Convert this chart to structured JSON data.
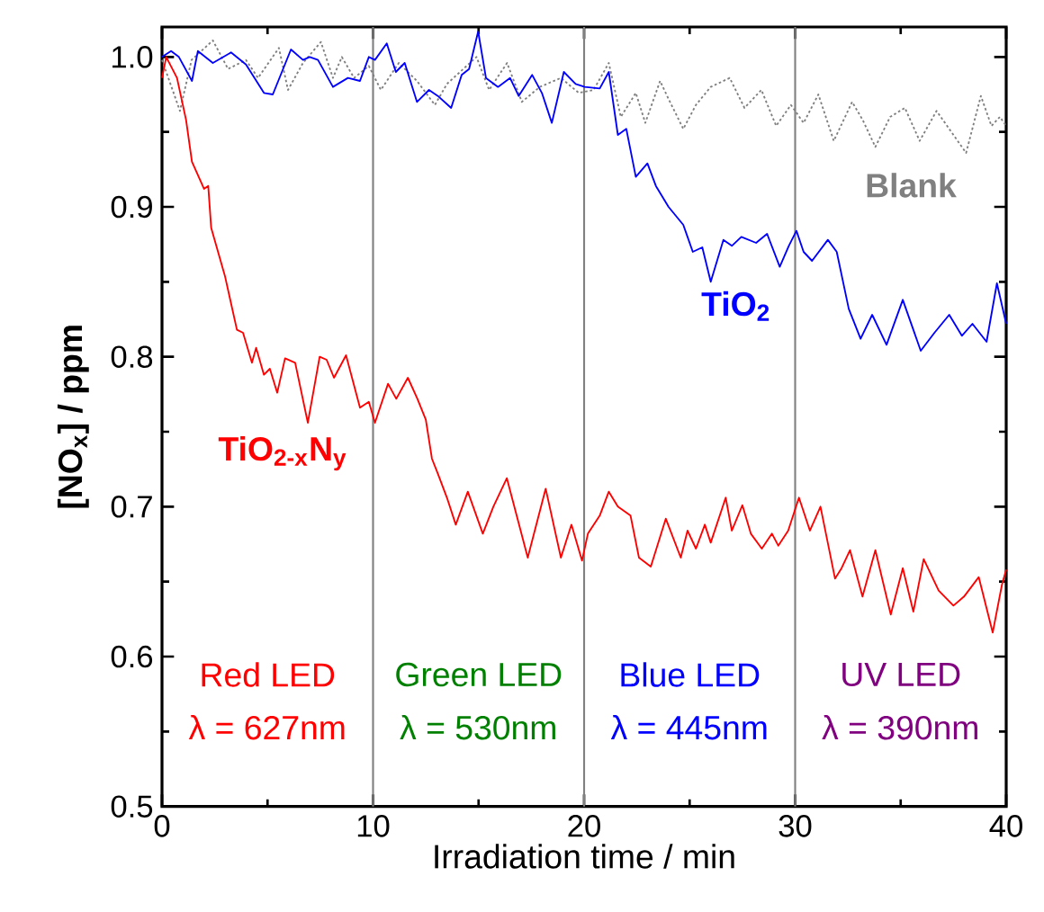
{
  "chart_data": {
    "type": "line",
    "xlabel": "Irradiation time / min",
    "ylabel": "**[NO$_{x}$] / ppm**",
    "xlim": [
      0,
      40
    ],
    "ylim": [
      0.5,
      1.02
    ],
    "xticks": [
      0,
      10,
      20,
      30,
      40
    ],
    "yticks": [
      0.5,
      0.6,
      0.7,
      0.8,
      0.9,
      {
        "value": 1,
        "label": "1.0"
      }
    ],
    "ref_lines": [
      {
        "axis": "x",
        "value": 10,
        "color": "#808080"
      },
      {
        "axis": "x",
        "value": 20,
        "color": "#808080"
      },
      {
        "axis": "x",
        "value": 30,
        "color": "#808080"
      }
    ],
    "annotations": [
      "Red LED",
      "λ = 627nm",
      "Green LED",
      "λ = 530nm",
      "Blue LED",
      "λ = 445nm",
      "UV LED",
      "λ = 390nm"
    ],
    "series": [
      {
        "name": "Blank",
        "color": "#808080",
        "line_style": "dotted",
        "x": [
          0,
          0.85,
          1.4,
          2.41,
          3.13,
          3.98,
          4.55,
          5.54,
          5.97,
          6.68,
          7.53,
          8.1,
          8.52,
          9.1,
          9.8,
          10.37,
          11.22,
          12.08,
          12.93,
          13.5,
          14.9,
          15.5,
          16.35,
          17.05,
          17.9,
          18.9,
          19.75,
          20.45,
          21.17,
          21.74,
          22.45,
          22.9,
          23.6,
          24.0,
          24.7,
          25.3,
          26.0,
          26.9,
          27.6,
          28.4,
          29.1,
          29.8,
          30.4,
          31.1,
          31.83,
          32.7,
          33.2,
          33.8,
          34.5,
          35.2,
          35.9,
          36.7,
          37.4,
          38.1,
          38.8,
          39.3,
          39.7,
          40
        ],
        "values": [
          0.998,
          0.964,
          0.998,
          1.011,
          0.992,
          0.998,
          0.986,
          1.006,
          0.978,
          0.996,
          1.01,
          0.986,
          1.0,
          0.986,
          0.994,
          0.978,
          0.996,
          0.984,
          0.968,
          0.982,
          1.0,
          0.978,
          0.996,
          0.97,
          0.98,
          0.986,
          0.976,
          0.978,
          0.996,
          0.96,
          0.976,
          0.956,
          0.984,
          0.972,
          0.952,
          0.968,
          0.98,
          0.986,
          0.966,
          0.978,
          0.954,
          0.968,
          0.956,
          0.975,
          0.944,
          0.97,
          0.958,
          0.94,
          0.96,
          0.966,
          0.944,
          0.964,
          0.95,
          0.936,
          0.974,
          0.954,
          0.96,
          0.954
        ]
      },
      {
        "name": "**TiO$_{2}$**",
        "color": "#0000ff",
        "x": [
          0,
          0.43,
          0.8,
          1.42,
          1.7,
          2.41,
          3.27,
          3.98,
          4.83,
          5.25,
          6.11,
          6.68,
          7.0,
          7.39,
          8.1,
          8.81,
          9.38,
          9.8,
          10.09,
          10.65,
          11.08,
          11.5,
          12.08,
          12.65,
          13.07,
          13.7,
          14.2,
          14.55,
          14.98,
          15.35,
          15.92,
          16.49,
          16.9,
          17.54,
          18.0,
          18.47,
          19.04,
          19.6,
          20.03,
          20.74,
          21.17,
          21.6,
          22.0,
          22.45,
          23.0,
          23.4,
          24.0,
          24.7,
          25.15,
          25.6,
          26.0,
          26.6,
          27.0,
          27.45,
          28.15,
          28.67,
          29.27,
          29.7,
          30.06,
          30.4,
          30.8,
          31.55,
          31.97,
          32.54,
          33.1,
          33.65,
          34.33,
          35.1,
          35.95,
          36.6,
          37.3,
          37.9,
          38.4,
          39.07,
          39.56,
          40
        ],
        "values": [
          1.0,
          1.004,
          1.0,
          0.984,
          1.004,
          0.996,
          1.003,
          0.995,
          0.976,
          0.975,
          1.005,
          0.998,
          1.0,
          0.998,
          0.98,
          0.986,
          0.984,
          1.0,
          0.998,
          1.009,
          0.99,
          0.996,
          0.97,
          0.978,
          0.974,
          0.966,
          0.988,
          0.992,
          1.017,
          0.986,
          0.98,
          0.986,
          0.974,
          0.988,
          0.976,
          0.956,
          0.99,
          0.982,
          0.98,
          0.979,
          0.99,
          0.948,
          0.952,
          0.92,
          0.929,
          0.914,
          0.9,
          0.888,
          0.87,
          0.873,
          0.85,
          0.878,
          0.874,
          0.88,
          0.876,
          0.882,
          0.86,
          0.874,
          0.884,
          0.87,
          0.864,
          0.878,
          0.87,
          0.832,
          0.812,
          0.828,
          0.808,
          0.838,
          0.804,
          0.816,
          0.828,
          0.814,
          0.822,
          0.81,
          0.849,
          0.822
        ]
      },
      {
        "name": "**TiO$_{2-x}$N$_{y}$**",
        "color": "#ff0000",
        "x": [
          0,
          0.2,
          0.71,
          1.14,
          1.42,
          1.99,
          2.19,
          2.33,
          2.98,
          3.55,
          3.84,
          4.26,
          4.46,
          4.83,
          5.11,
          5.46,
          5.83,
          6.31,
          6.91,
          7.47,
          7.8,
          8.15,
          8.72,
          9.38,
          9.8,
          10.09,
          10.71,
          11.1,
          11.65,
          12.1,
          12.5,
          12.79,
          13.07,
          13.5,
          13.92,
          14.49,
          15.2,
          15.7,
          16.34,
          17.33,
          18.18,
          18.9,
          19.4,
          19.9,
          20.18,
          20.74,
          21.17,
          21.6,
          22.2,
          22.6,
          23.16,
          23.87,
          24.58,
          24.9,
          25.3,
          25.72,
          26.0,
          26.71,
          27.0,
          27.5,
          27.9,
          28.42,
          28.9,
          29.2,
          29.67,
          30.18,
          30.7,
          31.2,
          31.89,
          32.2,
          32.6,
          33.19,
          33.8,
          34.53,
          35.1,
          35.6,
          36.09,
          36.8,
          37.5,
          38.0,
          38.7,
          39.36,
          39.8,
          40
        ],
        "values": [
          0.986,
          1.0,
          0.986,
          0.958,
          0.93,
          0.912,
          0.914,
          0.886,
          0.854,
          0.818,
          0.816,
          0.796,
          0.806,
          0.788,
          0.792,
          0.776,
          0.799,
          0.796,
          0.756,
          0.8,
          0.798,
          0.786,
          0.801,
          0.766,
          0.77,
          0.756,
          0.782,
          0.772,
          0.786,
          0.772,
          0.758,
          0.732,
          0.722,
          0.706,
          0.688,
          0.71,
          0.682,
          0.7,
          0.719,
          0.666,
          0.712,
          0.666,
          0.688,
          0.664,
          0.682,
          0.694,
          0.71,
          0.7,
          0.694,
          0.666,
          0.66,
          0.692,
          0.666,
          0.684,
          0.672,
          0.688,
          0.676,
          0.706,
          0.684,
          0.701,
          0.682,
          0.672,
          0.682,
          0.674,
          0.684,
          0.706,
          0.684,
          0.7,
          0.652,
          0.659,
          0.671,
          0.64,
          0.671,
          0.628,
          0.659,
          0.63,
          0.665,
          0.644,
          0.634,
          0.64,
          0.653,
          0.616,
          0.648,
          0.658
        ]
      }
    ]
  }
}
